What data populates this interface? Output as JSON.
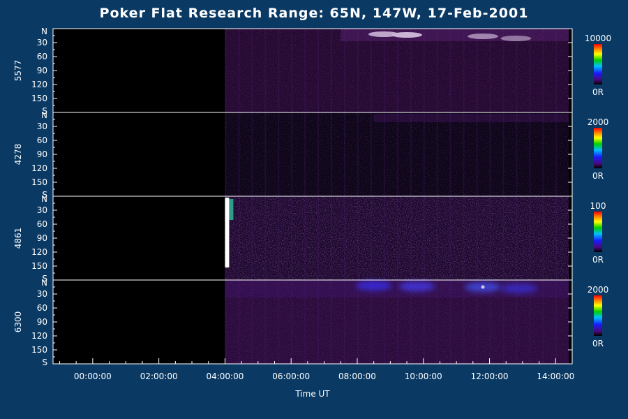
{
  "title": "Poker Flat Research Range: 65N, 147W, 17-Feb-2001",
  "colors": {
    "background": "#0a3a64",
    "data": "#2a0a3a",
    "axis": "#ffffff"
  },
  "chart_data": {
    "type": "heatmap",
    "title": "Poker Flat Research Range: 65N, 147W, 17-Feb-2001",
    "xlabel": "Time UT",
    "xlim_hours": [
      -1.2,
      14.5
    ],
    "x_tick_labels": [
      "00:00:00",
      "02:00:00",
      "04:00:00",
      "06:00:00",
      "08:00:00",
      "10:00:00",
      "12:00:00",
      "14:00:00"
    ],
    "x_tick_hours": [
      0,
      2,
      4,
      6,
      8,
      10,
      12,
      14
    ],
    "data_start_hour": 4.0,
    "data_end_hour": 14.4,
    "y_ticks": {
      "positions": [
        0,
        30,
        60,
        90,
        120,
        150,
        180
      ],
      "labels": [
        "N",
        "30",
        "60",
        "90",
        "120",
        "150",
        "S"
      ]
    },
    "ylim": [
      0,
      180
    ],
    "panels": [
      {
        "wavelength": "5577",
        "scale_max": "10000",
        "scale_min": "0R",
        "max_value": 10000
      },
      {
        "wavelength": "4278",
        "scale_max": "2000",
        "scale_min": "0R",
        "max_value": 2000
      },
      {
        "wavelength": "4861",
        "scale_max": "100",
        "scale_min": "0R",
        "max_value": 100
      },
      {
        "wavelength": "6300",
        "scale_max": "2000",
        "scale_min": "0R",
        "max_value": 2000
      }
    ]
  }
}
